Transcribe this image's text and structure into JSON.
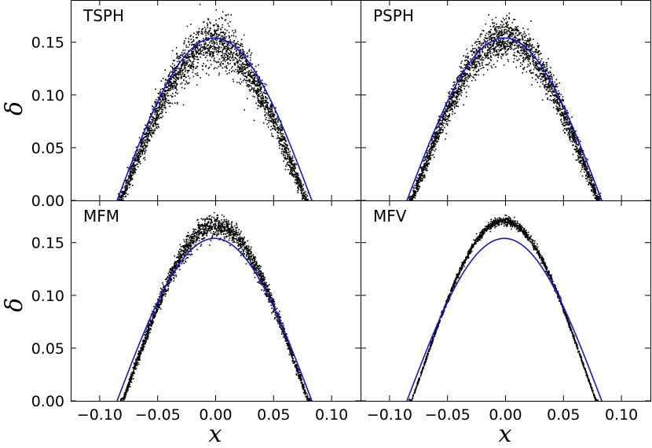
{
  "chart_data": {
    "type": "scatter",
    "layout": "2x2 shared axes",
    "xlabel": "x",
    "ylabel": "δ",
    "xlim": [
      -0.125,
      0.125
    ],
    "ylim": [
      0.0,
      0.19
    ],
    "x_ticks": [
      "−0.10",
      "−0.05",
      "0.00",
      "0.05",
      "0.10"
    ],
    "x_tick_values": [
      -0.1,
      -0.05,
      0.0,
      0.05,
      0.1
    ],
    "y_ticks": [
      "0.00",
      "0.05",
      "0.10",
      "0.15"
    ],
    "y_tick_values": [
      0.0,
      0.05,
      0.1,
      0.15
    ],
    "curve_color": "#1515d6",
    "points_color": "#000000",
    "analytic_curve": {
      "peak": 0.154,
      "x_zero_crossings": [
        -0.085,
        0.083
      ]
    },
    "panels": [
      {
        "id": "tsph",
        "label": "TSPH",
        "peak": 0.138,
        "x_zero_crossings": [
          -0.082,
          0.078
        ],
        "spread": 0.007,
        "n": 2600
      },
      {
        "id": "psph",
        "label": "PSPH",
        "peak": 0.142,
        "x_zero_crossings": [
          -0.081,
          0.08
        ],
        "spread": 0.006,
        "n": 2600
      },
      {
        "id": "mfm",
        "label": "MFM",
        "peak": 0.154,
        "x_zero_crossings": [
          -0.08,
          0.08
        ],
        "spread": 0.0032,
        "n": 2200
      },
      {
        "id": "mfv",
        "label": "MFV",
        "peak": 0.158,
        "x_zero_crossings": [
          -0.081,
          0.078
        ],
        "spread": 0.0012,
        "n": 1800
      }
    ]
  }
}
